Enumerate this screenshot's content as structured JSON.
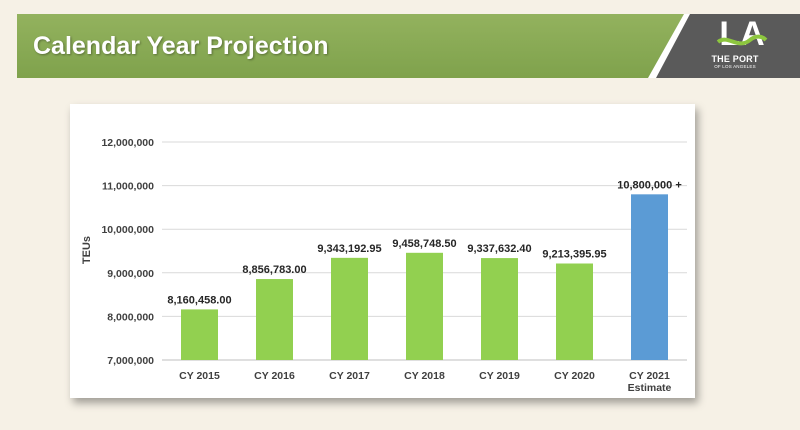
{
  "header": {
    "title": "Calendar Year Projection"
  },
  "logo": {
    "mark": "LA",
    "line1": "THE PORT",
    "line2": "OF LOS ANGELES"
  },
  "colors": {
    "banner": "#86a852",
    "bar_actual": "#92d050",
    "bar_estimate": "#5b9bd5",
    "logo_dark": "#5a5a5a",
    "logo_wave": "#8dc63f"
  },
  "chart_data": {
    "type": "bar",
    "ylabel": "TEUs",
    "xlabel": "",
    "ylim": [
      7000000,
      12000000
    ],
    "yticks": [
      7000000,
      8000000,
      9000000,
      10000000,
      11000000,
      12000000
    ],
    "ytick_labels": [
      "7,000,000",
      "8,000,000",
      "9,000,000",
      "10,000,000",
      "11,000,000",
      "12,000,000"
    ],
    "grid": true,
    "categories": [
      [
        "CY 2015"
      ],
      [
        "CY 2016"
      ],
      [
        "CY 2017"
      ],
      [
        "CY 2018"
      ],
      [
        "CY 2019"
      ],
      [
        "CY 2020"
      ],
      [
        "CY 2021",
        "Estimate"
      ]
    ],
    "values": [
      8160458.0,
      8856783.0,
      9343192.95,
      9458748.5,
      9337632.4,
      9213395.95,
      10800000
    ],
    "data_labels": [
      "8,160,458.00",
      "8,856,783.00",
      "9,343,192.95",
      "9,458,748.50",
      "9,337,632.40",
      "9,213,395.95",
      "10,800,000 +"
    ],
    "bar_colors": [
      "#92d050",
      "#92d050",
      "#92d050",
      "#92d050",
      "#92d050",
      "#92d050",
      "#5b9bd5"
    ]
  }
}
